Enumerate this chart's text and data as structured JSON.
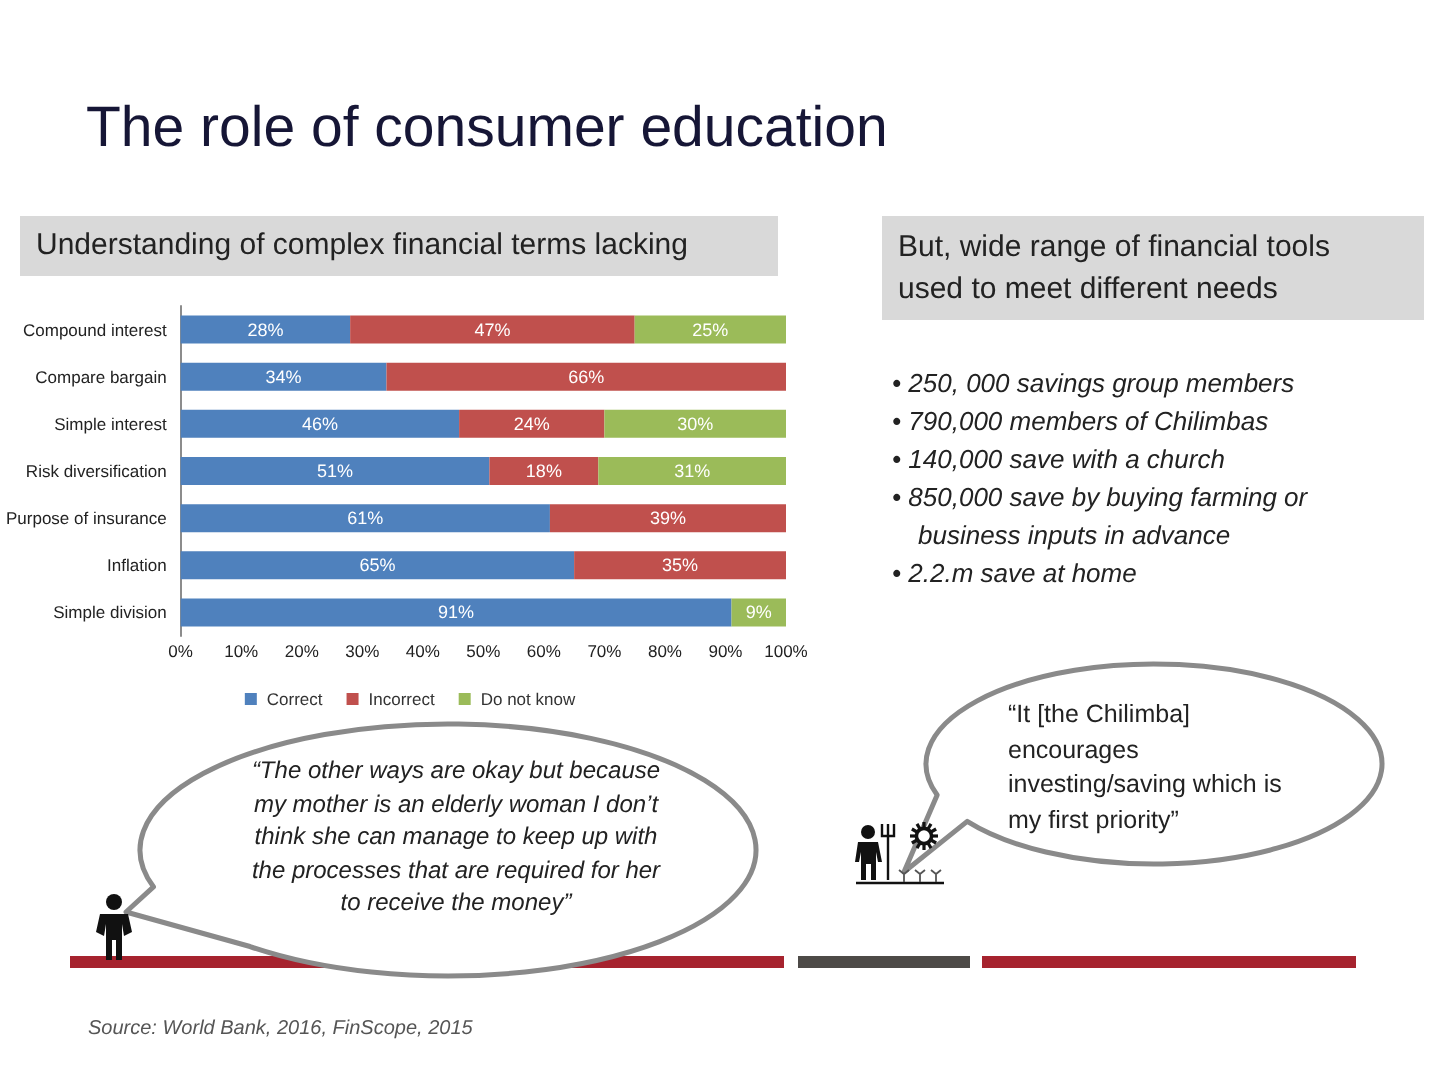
{
  "chart_data": {
    "type": "bar",
    "orientation": "horizontal",
    "stacked": true,
    "title": "The role of consumer education",
    "subtitle": "Understanding of complex financial terms lacking",
    "categories": [
      "Compound interest",
      "Compare bargain",
      "Simple interest",
      "Risk diversification",
      "Purpose of insurance",
      "Inflation",
      "Simple division"
    ],
    "series": [
      {
        "name": "Correct",
        "color": "#4f81bd",
        "values": [
          28,
          34,
          46,
          51,
          61,
          65,
          91
        ],
        "value_labels": [
          "28%",
          "34%",
          "46%",
          "51%",
          "61%",
          "65%",
          "91%"
        ]
      },
      {
        "name": "Incorrect",
        "color": "#c0504d",
        "values": [
          47,
          66,
          24,
          18,
          39,
          35,
          null
        ],
        "value_labels": [
          "47%",
          "66%",
          "24%",
          "18%",
          "39%",
          "35%",
          null
        ]
      },
      {
        "name": "Do not know",
        "color": "#9bbb59",
        "values": [
          25,
          null,
          30,
          31,
          null,
          null,
          9
        ],
        "value_labels": [
          "25%",
          null,
          "30%",
          "31%",
          null,
          null,
          "9%"
        ]
      }
    ],
    "xlim": [
      0,
      100
    ],
    "xticks": [
      {
        "value": 0,
        "label": "0%"
      },
      {
        "value": 10,
        "label": "10%"
      },
      {
        "value": 20,
        "label": "20%"
      },
      {
        "value": 30,
        "label": "30%"
      },
      {
        "value": 40,
        "label": "40%"
      },
      {
        "value": 50,
        "label": "50%"
      },
      {
        "value": 60,
        "label": "60%"
      },
      {
        "value": 70,
        "label": "70%"
      },
      {
        "value": 80,
        "label": "80%"
      },
      {
        "value": 90,
        "label": "90%"
      },
      {
        "value": 100,
        "label": "100%"
      }
    ],
    "grid": false,
    "legend": "bottom",
    "annotations": [
      "But, wide range of financial tools used to meet different needs",
      "• 250, 000 savings group members",
      "• 790,000 members of Chilimbas",
      "• 140,000 save with a church",
      "• 850,000 save by buying farming or business inputs in advance",
      "• 2.2.m save at home",
      "“The other ways are okay but because my mother is an elderly woman I don’t think she can manage to keep up with the processes that are required for her to receive the money”",
      "“It [the Chilimba] encourages investing/saving which is my first priority”",
      "Source: World Bank, 2016, FinScope, 2015"
    ]
  }
}
